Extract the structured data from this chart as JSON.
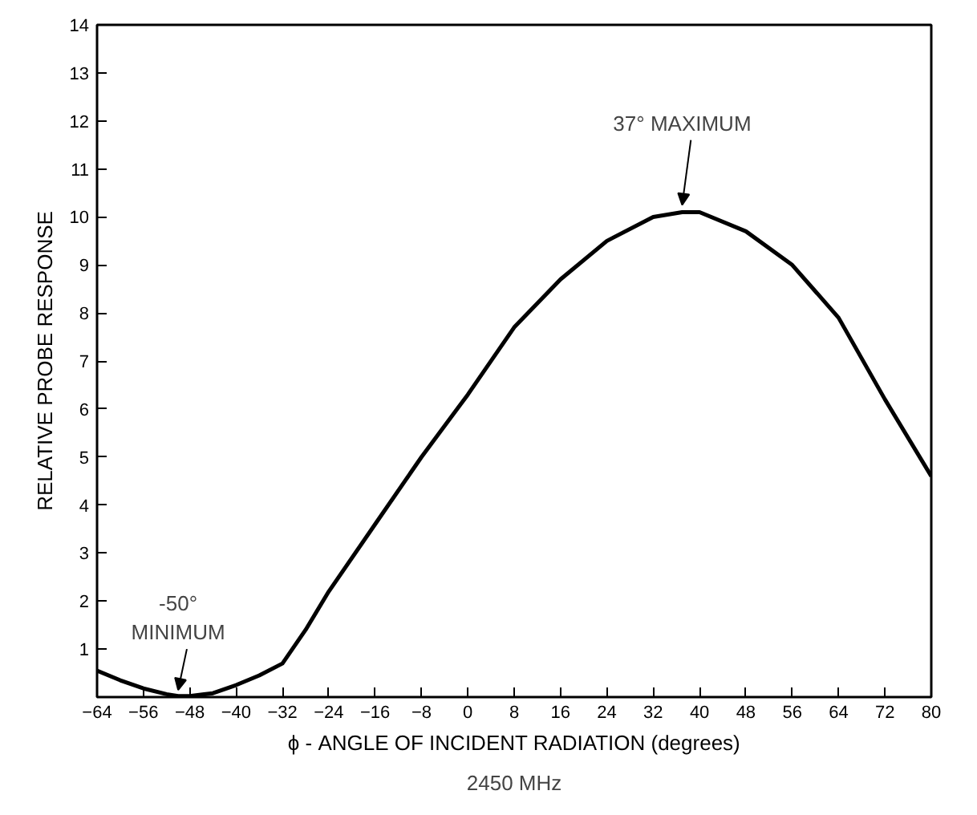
{
  "chart_data": {
    "type": "line",
    "xlabel": "ϕ - ANGLE OF INCIDENT RADIATION (degrees)",
    "ylabel": "RELATIVE PROBE RESPONSE",
    "x": [
      -64,
      -60,
      -56,
      -52,
      -50,
      -48,
      -44,
      -40,
      -36,
      -32,
      -28,
      -24,
      -16,
      -8,
      0,
      8,
      16,
      24,
      32,
      37,
      40,
      48,
      56,
      64,
      72,
      80
    ],
    "series": [
      {
        "color": "#000000",
        "values": [
          0.55,
          0.35,
          0.18,
          0.06,
          0.02,
          0.02,
          0.08,
          0.25,
          0.45,
          0.7,
          1.4,
          2.2,
          3.6,
          5.0,
          6.3,
          7.7,
          8.7,
          9.5,
          10.0,
          10.1,
          10.1,
          9.7,
          9.0,
          7.9,
          6.2,
          4.6
        ]
      }
    ],
    "xlim": [
      -64,
      80
    ],
    "xticks": [
      -64,
      -56,
      -48,
      -40,
      -32,
      -24,
      -16,
      -8,
      0,
      8,
      16,
      24,
      32,
      40,
      48,
      56,
      64,
      72,
      80
    ],
    "ylim": [
      0,
      14
    ],
    "yticks": [
      {
        "value": 0,
        "label": null
      },
      1,
      2,
      3,
      4,
      5,
      6,
      7,
      8,
      9,
      10,
      11,
      12,
      13,
      14
    ],
    "grid": false,
    "marker": "none",
    "line_style": "solid",
    "annotations": [
      {
        "text": "37° MAXIMUM",
        "x": 37,
        "y": 10.1
      },
      {
        "text": "-50° MINIMUM",
        "x": -50,
        "y": 0
      },
      "2450 MHz"
    ]
  }
}
